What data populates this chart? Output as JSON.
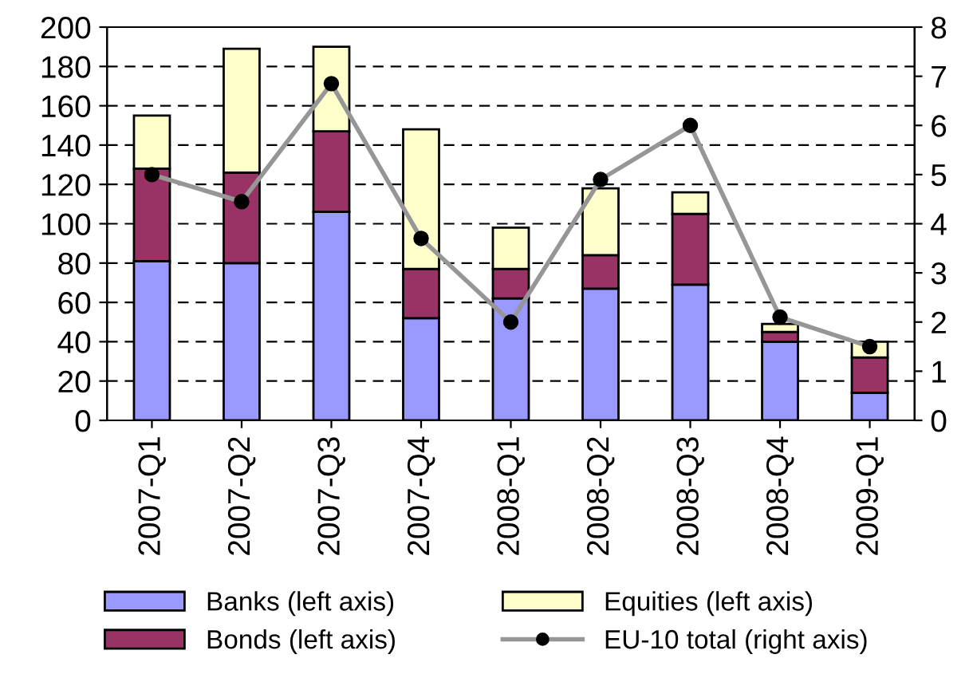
{
  "chart_data": {
    "type": "bar",
    "stacked": true,
    "categories": [
      "2007-Q1",
      "2007-Q2",
      "2007-Q3",
      "2007-Q4",
      "2008-Q1",
      "2008-Q2",
      "2008-Q3",
      "2008-Q4",
      "2009-Q1"
    ],
    "series": [
      {
        "name": "Banks (left axis)",
        "color": "#9999ff",
        "values": [
          81,
          80,
          106,
          52,
          62,
          67,
          69,
          40,
          14
        ]
      },
      {
        "name": "Bonds (left axis)",
        "color": "#993366",
        "values": [
          47,
          46,
          41,
          25,
          15,
          17,
          36,
          5,
          18
        ]
      },
      {
        "name": "Equities (left axis)",
        "color": "#ffffcc",
        "values": [
          27,
          63,
          43,
          71,
          21,
          34,
          11,
          4,
          8
        ]
      },
      {
        "name": "EU-10 total (right axis)",
        "type": "line",
        "axis": "y2",
        "color": "#969696",
        "marker": "circle",
        "values": [
          5.0,
          4.45,
          6.85,
          3.7,
          2.0,
          4.9,
          6.0,
          2.1,
          1.5
        ]
      }
    ],
    "ylim": [
      0,
      200
    ],
    "yticks": [
      0,
      20,
      40,
      60,
      80,
      100,
      120,
      140,
      160,
      180,
      200
    ],
    "y2lim": [
      0,
      8
    ],
    "y2ticks": [
      0,
      1,
      2,
      3,
      4,
      5,
      6,
      7,
      8
    ],
    "grid": "y",
    "legend": "bottom"
  }
}
